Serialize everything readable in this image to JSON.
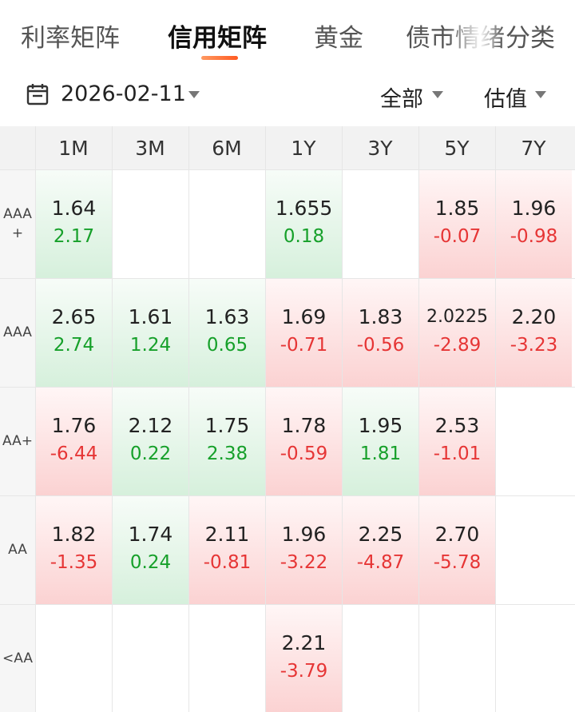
{
  "tabs": [
    {
      "label": "利率矩阵",
      "active": false
    },
    {
      "label": "信用矩阵",
      "active": true
    },
    {
      "label": "黄金",
      "active": false
    },
    {
      "label": "债市情绪",
      "active": false
    },
    {
      "label": "分类",
      "active": false
    }
  ],
  "filters": {
    "date": "2026-02-11",
    "scope": "全部",
    "metric": "估值"
  },
  "matrix": {
    "tenors": [
      "1M",
      "3M",
      "6M",
      "1Y",
      "3Y",
      "5Y",
      "7Y"
    ],
    "rows": [
      {
        "label_lines": [
          "AAA",
          "+"
        ],
        "cells": [
          {
            "yield": "1.64",
            "change": "2.17",
            "dir": "up"
          },
          null,
          null,
          {
            "yield": "1.655",
            "change": "0.18",
            "dir": "up"
          },
          null,
          {
            "yield": "1.85",
            "change": "-0.07",
            "dir": "down"
          },
          {
            "yield": "1.96",
            "change": "-0.98",
            "dir": "down"
          }
        ]
      },
      {
        "label_lines": [
          "AAA"
        ],
        "cells": [
          {
            "yield": "2.65",
            "change": "2.74",
            "dir": "up"
          },
          {
            "yield": "1.61",
            "change": "1.24",
            "dir": "up"
          },
          {
            "yield": "1.63",
            "change": "0.65",
            "dir": "up"
          },
          {
            "yield": "1.69",
            "change": "-0.71",
            "dir": "down"
          },
          {
            "yield": "1.83",
            "change": "-0.56",
            "dir": "down"
          },
          {
            "yield": "2.0225",
            "change": "-2.89",
            "dir": "down"
          },
          {
            "yield": "2.20",
            "change": "-3.23",
            "dir": "down"
          }
        ]
      },
      {
        "label_lines": [
          "AA+"
        ],
        "cells": [
          {
            "yield": "1.76",
            "change": "-6.44",
            "dir": "down"
          },
          {
            "yield": "2.12",
            "change": "0.22",
            "dir": "up"
          },
          {
            "yield": "1.75",
            "change": "2.38",
            "dir": "up"
          },
          {
            "yield": "1.78",
            "change": "-0.59",
            "dir": "down"
          },
          {
            "yield": "1.95",
            "change": "1.81",
            "dir": "up"
          },
          {
            "yield": "2.53",
            "change": "-1.01",
            "dir": "down"
          },
          null
        ]
      },
      {
        "label_lines": [
          "AA"
        ],
        "cells": [
          {
            "yield": "1.82",
            "change": "-1.35",
            "dir": "down"
          },
          {
            "yield": "1.74",
            "change": "0.24",
            "dir": "up"
          },
          {
            "yield": "2.11",
            "change": "-0.81",
            "dir": "down"
          },
          {
            "yield": "1.96",
            "change": "-3.22",
            "dir": "down"
          },
          {
            "yield": "2.25",
            "change": "-4.87",
            "dir": "down"
          },
          {
            "yield": "2.70",
            "change": "-5.78",
            "dir": "down"
          },
          null
        ]
      },
      {
        "label_lines": [
          "<AA"
        ],
        "cells": [
          null,
          null,
          null,
          {
            "yield": "2.21",
            "change": "-3.79",
            "dir": "down"
          },
          null,
          null,
          null
        ]
      }
    ]
  },
  "colors": {
    "up": "#16a02a",
    "down": "#e63535",
    "accent": "#ff6a2c"
  },
  "icons": {
    "date": "calendar-icon",
    "dropdown": "chevron-down-icon"
  }
}
